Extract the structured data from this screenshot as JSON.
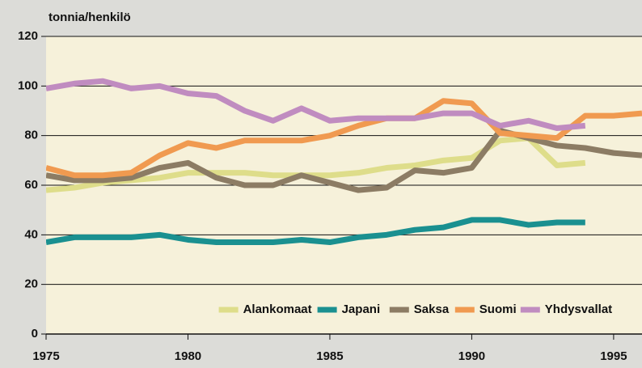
{
  "chart_data": {
    "type": "line",
    "y_label": "tonnia/henkilö",
    "x": [
      1975,
      1976,
      1977,
      1978,
      1979,
      1980,
      1981,
      1982,
      1983,
      1984,
      1985,
      1986,
      1987,
      1988,
      1989,
      1990,
      1991,
      1992,
      1993,
      1994,
      1995,
      1996
    ],
    "xlim": [
      1975,
      1996
    ],
    "xticks": [
      1975,
      1980,
      1985,
      1990,
      1995
    ],
    "ylim": [
      0,
      120
    ],
    "yticks": [
      0,
      20,
      40,
      60,
      80,
      100,
      120
    ],
    "grid": true,
    "legend": "bottom-right",
    "series": [
      {
        "name": "Alankomaat",
        "color": "#dedd8a",
        "values": [
          58,
          59,
          61,
          62,
          63,
          65,
          65,
          65,
          64,
          64,
          64,
          65,
          67,
          68,
          70,
          71,
          78,
          79,
          68,
          69,
          null,
          null
        ]
      },
      {
        "name": "Japani",
        "color": "#1a9090",
        "values": [
          37,
          39,
          39,
          39,
          40,
          38,
          37,
          37,
          37,
          38,
          37,
          39,
          40,
          42,
          43,
          46,
          46,
          44,
          45,
          45,
          null,
          null
        ]
      },
      {
        "name": "Saksa",
        "color": "#8c7c64",
        "values": [
          64,
          62,
          62,
          63,
          67,
          69,
          63,
          60,
          60,
          64,
          61,
          58,
          59,
          66,
          65,
          67,
          82,
          79,
          76,
          75,
          73,
          72
        ]
      },
      {
        "name": "Suomi",
        "color": "#f09a50",
        "values": [
          67,
          64,
          64,
          65,
          72,
          77,
          75,
          78,
          78,
          78,
          80,
          84,
          87,
          87,
          94,
          93,
          81,
          80,
          79,
          88,
          88,
          89
        ]
      },
      {
        "name": "Yhdysvallat",
        "color": "#c08cc0",
        "values": [
          99,
          101,
          102,
          99,
          100,
          97,
          96,
          90,
          86,
          91,
          86,
          87,
          87,
          87,
          89,
          89,
          84,
          86,
          83,
          84,
          null,
          null
        ]
      }
    ]
  }
}
